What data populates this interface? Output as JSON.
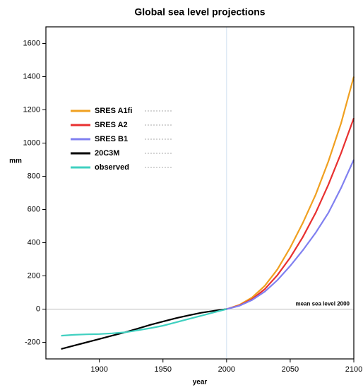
{
  "chart_data": {
    "type": "line",
    "title": "Global sea level projections",
    "x_label": "year",
    "y_label": "mm",
    "annotation": "mean sea level 2000",
    "x": [
      1870,
      1880,
      1890,
      1900,
      1910,
      1920,
      1930,
      1940,
      1950,
      1960,
      1970,
      1980,
      1990,
      2000,
      2010,
      2020,
      2030,
      2040,
      2050,
      2060,
      2070,
      2080,
      2090,
      2100
    ],
    "series": [
      {
        "name": "SRES A1fi",
        "color": "#f0a020",
        "values": [
          null,
          null,
          null,
          null,
          null,
          null,
          null,
          null,
          null,
          null,
          null,
          null,
          null,
          0,
          25,
          70,
          140,
          240,
          370,
          520,
          690,
          890,
          1120,
          1400
        ]
      },
      {
        "name": "SRES A2",
        "color": "#e83030",
        "values": [
          null,
          null,
          null,
          null,
          null,
          null,
          null,
          null,
          null,
          null,
          null,
          null,
          null,
          0,
          22,
          60,
          120,
          205,
          310,
          435,
          580,
          750,
          940,
          1150
        ]
      },
      {
        "name": "SRES B1",
        "color": "#8080f0",
        "values": [
          null,
          null,
          null,
          null,
          null,
          null,
          null,
          null,
          null,
          null,
          null,
          null,
          null,
          0,
          20,
          55,
          105,
          175,
          260,
          355,
          460,
          580,
          730,
          900
        ]
      },
      {
        "name": "20C3M",
        "color": "#000000",
        "values": [
          -240,
          -220,
          -200,
          -180,
          -160,
          -140,
          -118,
          -95,
          -75,
          -55,
          -38,
          -22,
          -10,
          0,
          null,
          null,
          null,
          null,
          null,
          null,
          null,
          null,
          null,
          null
        ]
      },
      {
        "name": "observed",
        "color": "#40d0c0",
        "values": [
          -160,
          -155,
          -152,
          -150,
          -146,
          -140,
          -128,
          -115,
          -100,
          -80,
          -60,
          -40,
          -20,
          0,
          null,
          null,
          null,
          null,
          null,
          null,
          null,
          null,
          null,
          null
        ]
      }
    ],
    "xlim": [
      1858,
      2100
    ],
    "ylim": [
      -300,
      1700
    ],
    "xticks": [
      1900,
      1950,
      2000,
      2050,
      2100
    ],
    "yticks": [
      -200,
      0,
      200,
      400,
      600,
      800,
      1000,
      1200,
      1400,
      1600
    ]
  }
}
